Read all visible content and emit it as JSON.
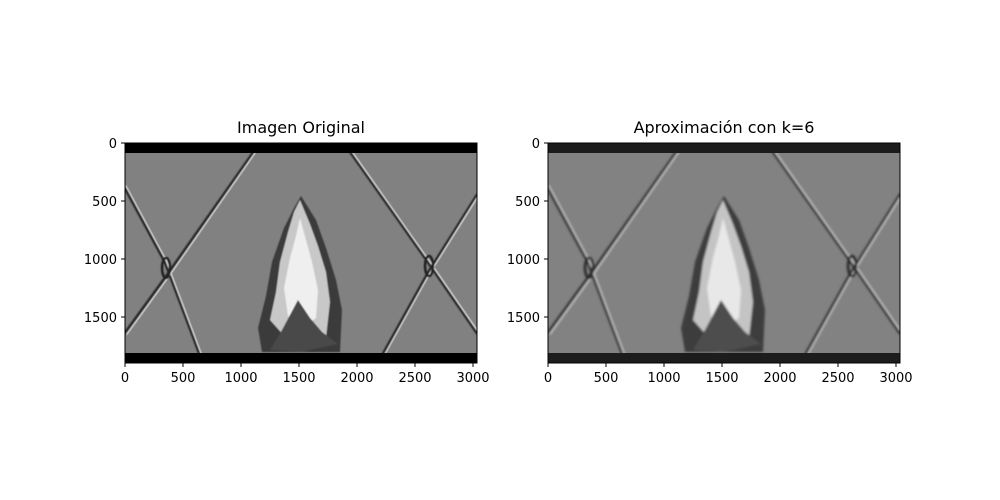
{
  "panels": [
    {
      "title": "Imagen Original",
      "xticks": [
        "0",
        "500",
        "1000",
        "1500",
        "2000",
        "2500",
        "3000"
      ],
      "yticks": [
        "0",
        "500",
        "1000",
        "1500"
      ],
      "border_band_color": "#000000"
    },
    {
      "title": "Aproximación con k=6",
      "xticks": [
        "0",
        "500",
        "1000",
        "1500",
        "2000",
        "2500",
        "3000"
      ],
      "yticks": [
        "0",
        "500",
        "1000",
        "1500"
      ],
      "border_band_color": "#1c1c1c"
    }
  ],
  "colors": {
    "sky": "#818181",
    "wire_dark": "#2a2a2a",
    "wire_light": "#e6e6e6",
    "tree_dark": "#3a3a3a",
    "tree_light": "#c8c8c8"
  }
}
